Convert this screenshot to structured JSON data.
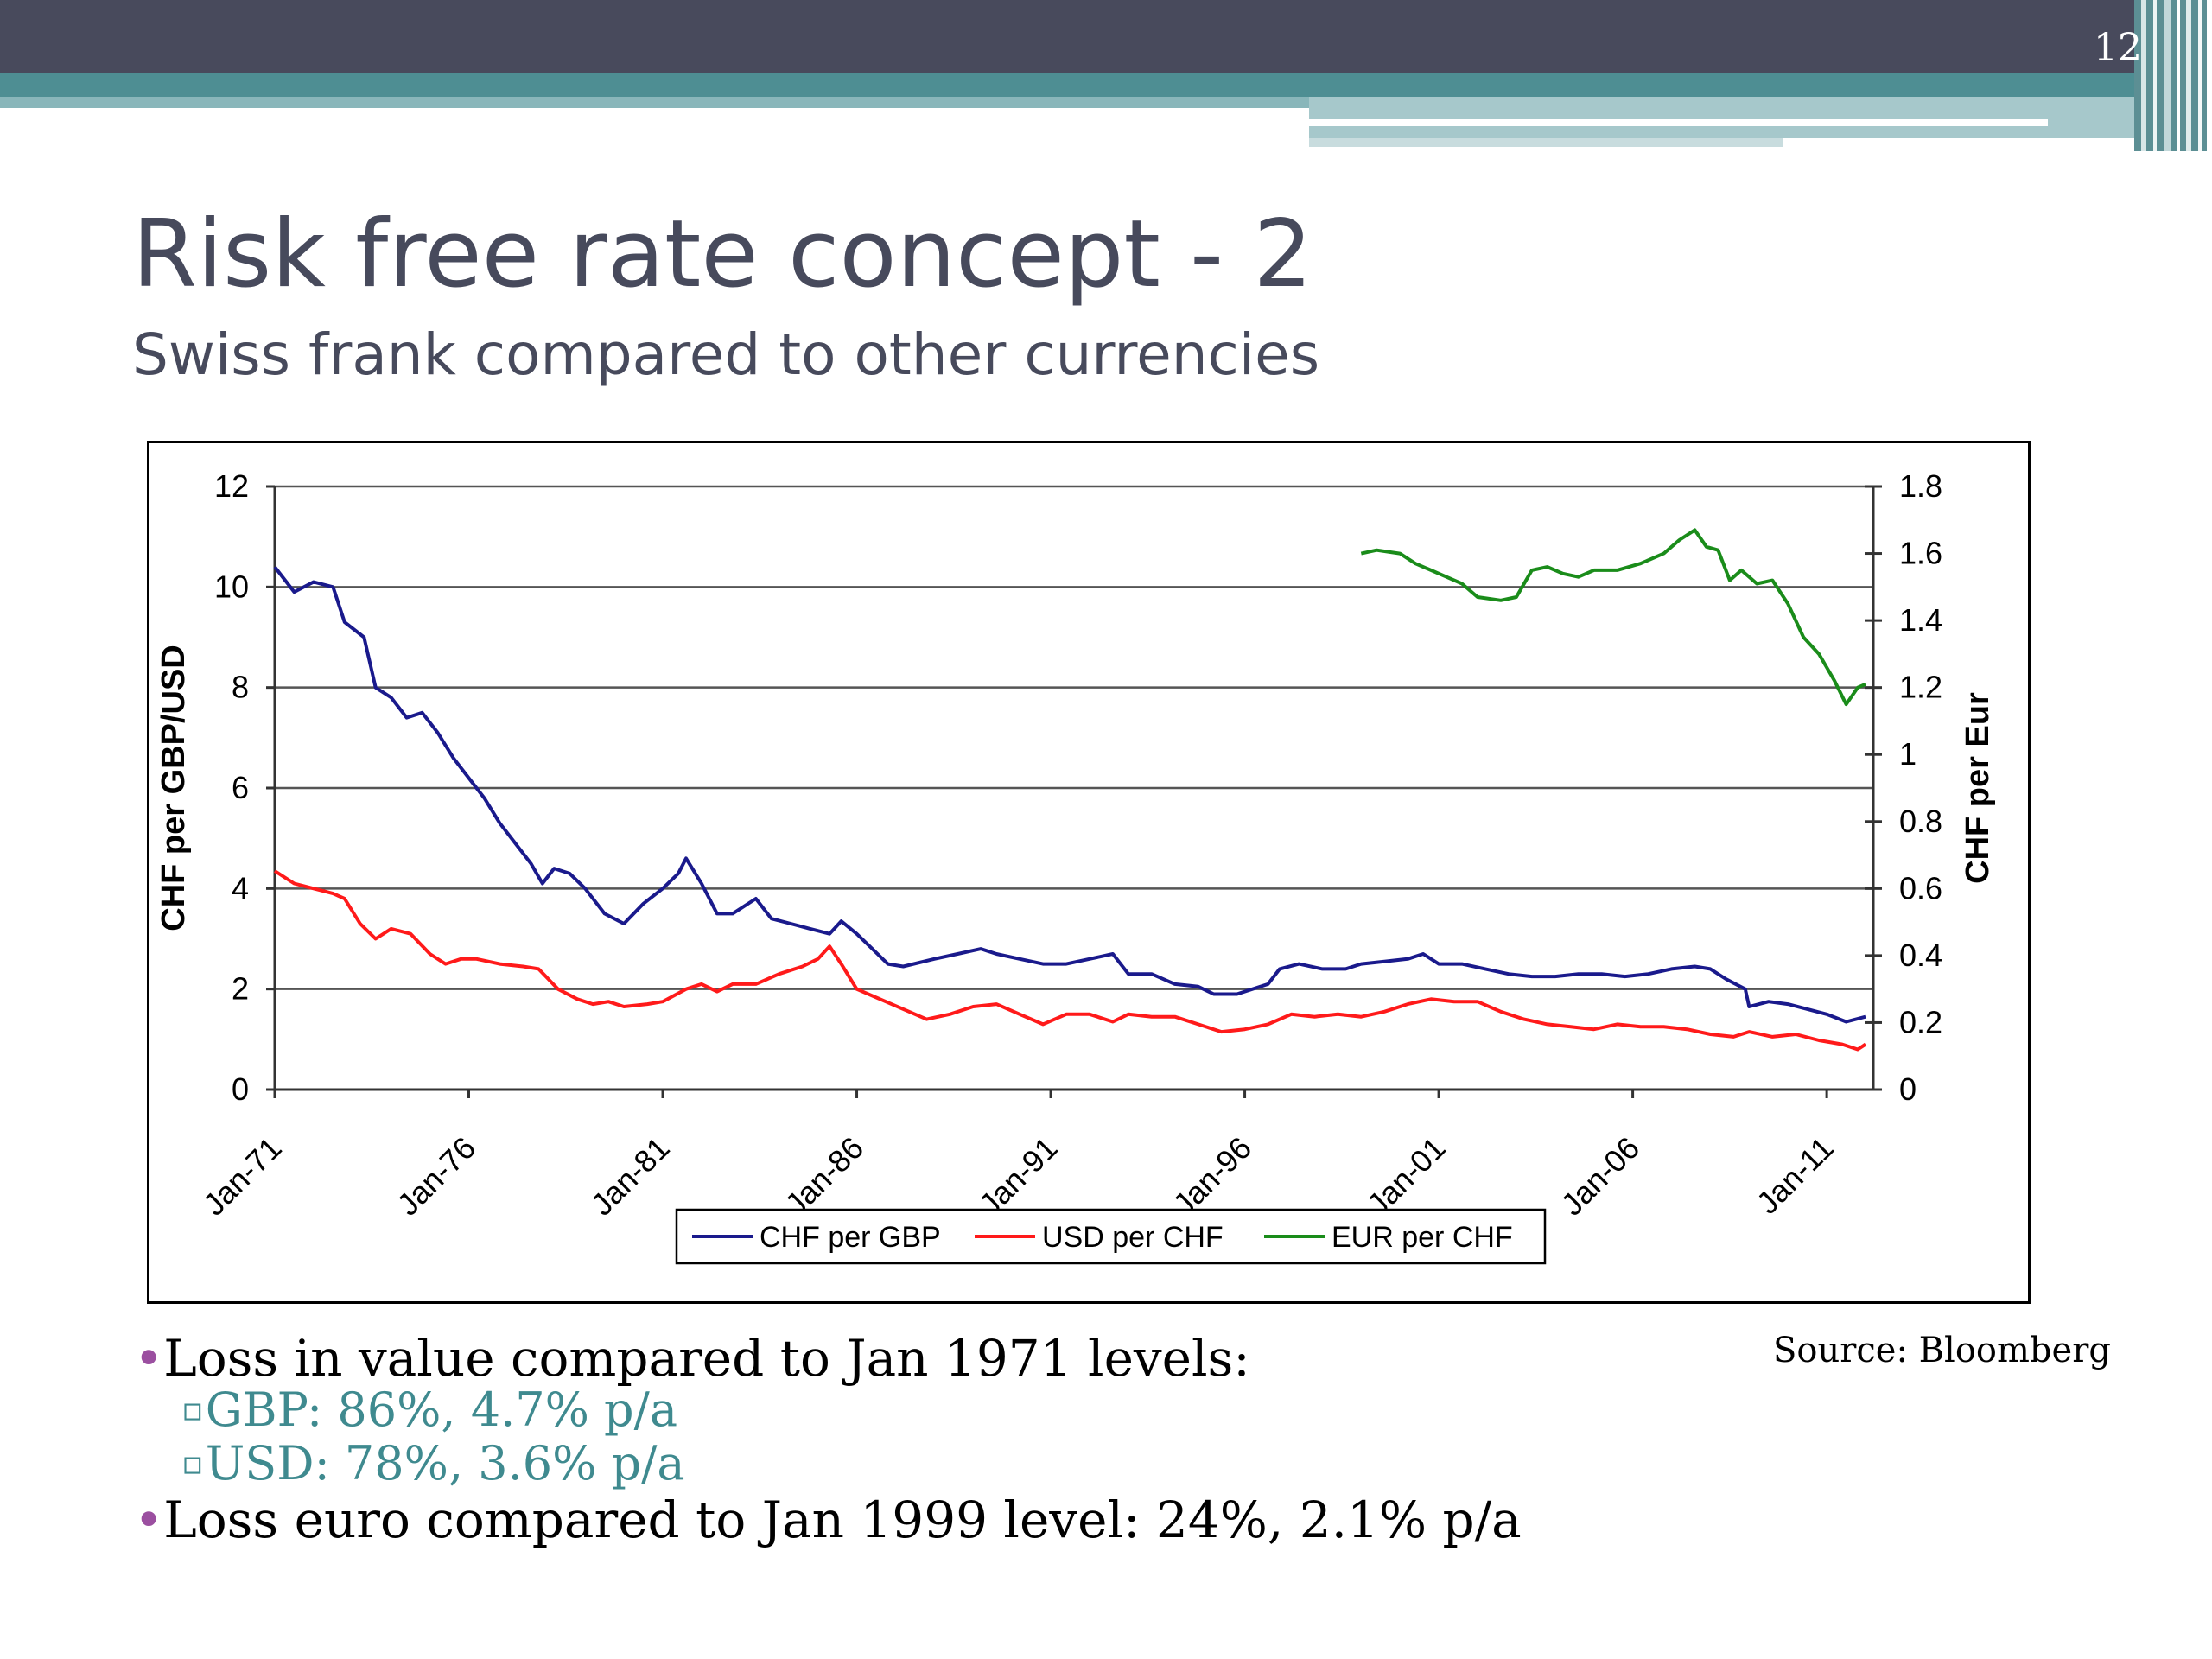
{
  "slide": {
    "number": "12",
    "title": "Risk free rate concept - 2",
    "subtitle": "Swiss frank compared to other currencies",
    "source": "Source: Bloomberg",
    "bullets": {
      "b1": "Loss in value compared to Jan 1971 levels:",
      "b2": "GBP: 86%, 4.7% p/a",
      "b3": "USD: 78%, 3.6% p/a",
      "b4": "Loss euro compared to Jan 1999 level: 24%, 2.1% p/a"
    },
    "bullet_glyph": "•",
    "sub_bullet_glyph": "▫"
  },
  "colors": {
    "header": "#484a5c",
    "teal": "#4e8e93",
    "title": "#474a5c",
    "bullet_dot": "#9b4fa0",
    "sub_text": "#3f8a8f"
  },
  "chart_data": {
    "type": "line",
    "xlabel": "",
    "ylabel": "CHF per GBP/USD",
    "ylabel_right": "CHF per Eur",
    "x_ticks": [
      "Jan-71",
      "Jan-76",
      "Jan-81",
      "Jan-86",
      "Jan-91",
      "Jan-96",
      "Jan-01",
      "Jan-06",
      "Jan-11"
    ],
    "x_range": [
      1971.0,
      2012.2
    ],
    "ylim_left": [
      0,
      12
    ],
    "y_ticks_left": [
      0,
      2,
      4,
      6,
      8,
      10,
      12
    ],
    "ylim_right": [
      0,
      1.8
    ],
    "y_ticks_right": [
      "0",
      "0.2",
      "0.4",
      "0.6",
      "0.8",
      "1",
      "1.2",
      "1.4",
      "1.6",
      "1.8"
    ],
    "grid": true,
    "legend_position": "bottom",
    "series": [
      {
        "name": "CHF per GBP",
        "color": "#1a1a8c",
        "axis": "left",
        "points": [
          [
            1971.0,
            10.4
          ],
          [
            1971.5,
            9.9
          ],
          [
            1972.0,
            10.1
          ],
          [
            1972.5,
            10.0
          ],
          [
            1972.8,
            9.3
          ],
          [
            1973.3,
            9.0
          ],
          [
            1973.6,
            8.0
          ],
          [
            1974.0,
            7.8
          ],
          [
            1974.4,
            7.4
          ],
          [
            1974.8,
            7.5
          ],
          [
            1975.2,
            7.1
          ],
          [
            1975.6,
            6.6
          ],
          [
            1976.0,
            6.2
          ],
          [
            1976.4,
            5.8
          ],
          [
            1976.8,
            5.3
          ],
          [
            1977.2,
            4.9
          ],
          [
            1977.6,
            4.5
          ],
          [
            1977.9,
            4.1
          ],
          [
            1978.2,
            4.4
          ],
          [
            1978.6,
            4.3
          ],
          [
            1979.0,
            4.0
          ],
          [
            1979.5,
            3.5
          ],
          [
            1980.0,
            3.3
          ],
          [
            1980.5,
            3.7
          ],
          [
            1981.0,
            4.0
          ],
          [
            1981.4,
            4.3
          ],
          [
            1981.6,
            4.6
          ],
          [
            1982.0,
            4.1
          ],
          [
            1982.4,
            3.5
          ],
          [
            1982.8,
            3.5
          ],
          [
            1983.4,
            3.8
          ],
          [
            1983.8,
            3.4
          ],
          [
            1984.3,
            3.3
          ],
          [
            1984.8,
            3.2
          ],
          [
            1985.3,
            3.1
          ],
          [
            1985.6,
            3.35
          ],
          [
            1986.0,
            3.1
          ],
          [
            1986.4,
            2.8
          ],
          [
            1986.8,
            2.5
          ],
          [
            1987.2,
            2.45
          ],
          [
            1988.0,
            2.6
          ],
          [
            1988.6,
            2.7
          ],
          [
            1989.2,
            2.8
          ],
          [
            1989.6,
            2.7
          ],
          [
            1990.2,
            2.6
          ],
          [
            1990.8,
            2.5
          ],
          [
            1991.4,
            2.5
          ],
          [
            1992.0,
            2.6
          ],
          [
            1992.6,
            2.7
          ],
          [
            1993.0,
            2.3
          ],
          [
            1993.6,
            2.3
          ],
          [
            1994.2,
            2.1
          ],
          [
            1994.8,
            2.05
          ],
          [
            1995.2,
            1.9
          ],
          [
            1995.8,
            1.9
          ],
          [
            1996.6,
            2.1
          ],
          [
            1996.9,
            2.4
          ],
          [
            1997.4,
            2.5
          ],
          [
            1998.0,
            2.4
          ],
          [
            1998.6,
            2.4
          ],
          [
            1999.0,
            2.5
          ],
          [
            1999.6,
            2.55
          ],
          [
            2000.2,
            2.6
          ],
          [
            2000.6,
            2.7
          ],
          [
            2001.0,
            2.5
          ],
          [
            2001.6,
            2.5
          ],
          [
            2002.2,
            2.4
          ],
          [
            2002.8,
            2.3
          ],
          [
            2003.4,
            2.25
          ],
          [
            2004.0,
            2.25
          ],
          [
            2004.6,
            2.3
          ],
          [
            2005.2,
            2.3
          ],
          [
            2005.8,
            2.25
          ],
          [
            2006.4,
            2.3
          ],
          [
            2007.0,
            2.4
          ],
          [
            2007.6,
            2.45
          ],
          [
            2008.0,
            2.4
          ],
          [
            2008.4,
            2.2
          ],
          [
            2008.9,
            2.0
          ],
          [
            2009.0,
            1.65
          ],
          [
            2009.5,
            1.75
          ],
          [
            2010.0,
            1.7
          ],
          [
            2010.5,
            1.6
          ],
          [
            2011.0,
            1.5
          ],
          [
            2011.5,
            1.35
          ],
          [
            2012.0,
            1.45
          ]
        ]
      },
      {
        "name": "USD per CHF",
        "color": "#ff1a1a",
        "axis": "left",
        "points": [
          [
            1971.0,
            4.35
          ],
          [
            1971.5,
            4.1
          ],
          [
            1972.0,
            4.0
          ],
          [
            1972.5,
            3.9
          ],
          [
            1972.8,
            3.8
          ],
          [
            1973.2,
            3.3
          ],
          [
            1973.6,
            3.0
          ],
          [
            1974.0,
            3.2
          ],
          [
            1974.5,
            3.1
          ],
          [
            1975.0,
            2.7
          ],
          [
            1975.4,
            2.5
          ],
          [
            1975.8,
            2.6
          ],
          [
            1976.2,
            2.6
          ],
          [
            1976.8,
            2.5
          ],
          [
            1977.4,
            2.45
          ],
          [
            1977.8,
            2.4
          ],
          [
            1978.3,
            2.0
          ],
          [
            1978.8,
            1.8
          ],
          [
            1979.2,
            1.7
          ],
          [
            1979.6,
            1.75
          ],
          [
            1980.0,
            1.65
          ],
          [
            1980.6,
            1.7
          ],
          [
            1981.0,
            1.75
          ],
          [
            1981.6,
            2.0
          ],
          [
            1982.0,
            2.1
          ],
          [
            1982.4,
            1.95
          ],
          [
            1982.8,
            2.1
          ],
          [
            1983.4,
            2.1
          ],
          [
            1984.0,
            2.3
          ],
          [
            1984.6,
            2.45
          ],
          [
            1985.0,
            2.6
          ],
          [
            1985.3,
            2.85
          ],
          [
            1985.6,
            2.5
          ],
          [
            1986.0,
            2.0
          ],
          [
            1986.6,
            1.8
          ],
          [
            1987.2,
            1.6
          ],
          [
            1987.8,
            1.4
          ],
          [
            1988.4,
            1.5
          ],
          [
            1989.0,
            1.65
          ],
          [
            1989.6,
            1.7
          ],
          [
            1990.2,
            1.5
          ],
          [
            1990.8,
            1.3
          ],
          [
            1991.4,
            1.5
          ],
          [
            1992.0,
            1.5
          ],
          [
            1992.6,
            1.35
          ],
          [
            1993.0,
            1.5
          ],
          [
            1993.6,
            1.45
          ],
          [
            1994.2,
            1.45
          ],
          [
            1994.8,
            1.3
          ],
          [
            1995.4,
            1.15
          ],
          [
            1996.0,
            1.2
          ],
          [
            1996.6,
            1.3
          ],
          [
            1997.2,
            1.5
          ],
          [
            1997.8,
            1.45
          ],
          [
            1998.4,
            1.5
          ],
          [
            1999.0,
            1.45
          ],
          [
            1999.6,
            1.55
          ],
          [
            2000.2,
            1.7
          ],
          [
            2000.8,
            1.8
          ],
          [
            2001.4,
            1.75
          ],
          [
            2002.0,
            1.75
          ],
          [
            2002.6,
            1.55
          ],
          [
            2003.2,
            1.4
          ],
          [
            2003.8,
            1.3
          ],
          [
            2004.4,
            1.25
          ],
          [
            2005.0,
            1.2
          ],
          [
            2005.6,
            1.3
          ],
          [
            2006.2,
            1.25
          ],
          [
            2006.8,
            1.25
          ],
          [
            2007.4,
            1.2
          ],
          [
            2008.0,
            1.1
          ],
          [
            2008.6,
            1.05
          ],
          [
            2009.0,
            1.15
          ],
          [
            2009.6,
            1.05
          ],
          [
            2010.2,
            1.1
          ],
          [
            2010.8,
            0.98
          ],
          [
            2011.4,
            0.9
          ],
          [
            2011.8,
            0.8
          ],
          [
            2012.0,
            0.9
          ]
        ]
      },
      {
        "name": "EUR per CHF",
        "color": "#1a8c1a",
        "axis": "right",
        "points": [
          [
            1999.0,
            1.6
          ],
          [
            1999.4,
            1.61
          ],
          [
            2000.0,
            1.6
          ],
          [
            2000.4,
            1.57
          ],
          [
            2000.8,
            1.55
          ],
          [
            2001.2,
            1.53
          ],
          [
            2001.6,
            1.51
          ],
          [
            2002.0,
            1.47
          ],
          [
            2002.6,
            1.46
          ],
          [
            2003.0,
            1.47
          ],
          [
            2003.4,
            1.55
          ],
          [
            2003.8,
            1.56
          ],
          [
            2004.2,
            1.54
          ],
          [
            2004.6,
            1.53
          ],
          [
            2005.0,
            1.55
          ],
          [
            2005.6,
            1.55
          ],
          [
            2006.2,
            1.57
          ],
          [
            2006.8,
            1.6
          ],
          [
            2007.2,
            1.64
          ],
          [
            2007.6,
            1.67
          ],
          [
            2007.9,
            1.62
          ],
          [
            2008.2,
            1.61
          ],
          [
            2008.5,
            1.52
          ],
          [
            2008.8,
            1.55
          ],
          [
            2009.2,
            1.51
          ],
          [
            2009.6,
            1.52
          ],
          [
            2010.0,
            1.45
          ],
          [
            2010.4,
            1.35
          ],
          [
            2010.8,
            1.3
          ],
          [
            2011.2,
            1.22
          ],
          [
            2011.5,
            1.15
          ],
          [
            2011.8,
            1.2
          ],
          [
            2012.0,
            1.21
          ]
        ]
      }
    ]
  }
}
